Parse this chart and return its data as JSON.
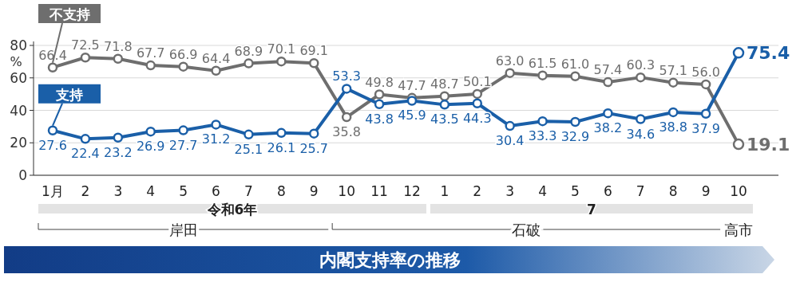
{
  "chart_data": {
    "type": "line",
    "title": "内閣支持率の推移",
    "ylabel": "%",
    "categories": [
      "1月",
      "2",
      "3",
      "4",
      "5",
      "6",
      "7",
      "8",
      "9",
      "10",
      "11",
      "12",
      "1",
      "2",
      "3",
      "4",
      "5",
      "6",
      "7",
      "8",
      "9",
      "10"
    ],
    "series": [
      {
        "name": "不支持",
        "color": "#6e6e6e",
        "values": [
          66.4,
          72.5,
          71.8,
          67.7,
          66.9,
          64.4,
          68.9,
          70.1,
          69.1,
          35.8,
          49.8,
          47.7,
          48.7,
          50.1,
          63.0,
          61.5,
          61.0,
          57.4,
          60.3,
          57.1,
          56.0,
          19.1
        ],
        "value_labels": [
          "66.4",
          "72.5",
          "71.8",
          "67.7",
          "66.9",
          "64.4",
          "68.9",
          "70.1",
          "69.1",
          "35.8",
          "49.8",
          "47.7",
          "48.7",
          "50.1",
          "63.0",
          "61.5",
          "61.0",
          "57.4",
          "60.3",
          "57.1",
          "56.0",
          "19.1"
        ]
      },
      {
        "name": "支持",
        "color": "#1a5fa8",
        "values": [
          27.6,
          22.4,
          23.2,
          26.9,
          27.7,
          31.2,
          25.1,
          26.1,
          25.7,
          53.3,
          43.8,
          45.9,
          43.5,
          44.3,
          30.4,
          33.3,
          32.9,
          38.2,
          34.6,
          38.8,
          37.9,
          75.4
        ],
        "value_labels": [
          "27.6",
          "22.4",
          "23.2",
          "26.9",
          "27.7",
          "31.2",
          "25.1",
          "26.1",
          "25.7",
          "53.3",
          "43.8",
          "45.9",
          "43.5",
          "44.3",
          "30.4",
          "33.3",
          "32.9",
          "38.2",
          "34.6",
          "38.8",
          "37.9",
          "75.4"
        ]
      }
    ],
    "annotations": [
      "令和6年",
      "7",
      "岸田",
      "石破",
      "高市"
    ],
    "ylim": [
      0,
      80
    ],
    "yticks": [
      0,
      20,
      40,
      60,
      80
    ],
    "grid": "y",
    "marker": "circle",
    "line_style": "solid"
  }
}
